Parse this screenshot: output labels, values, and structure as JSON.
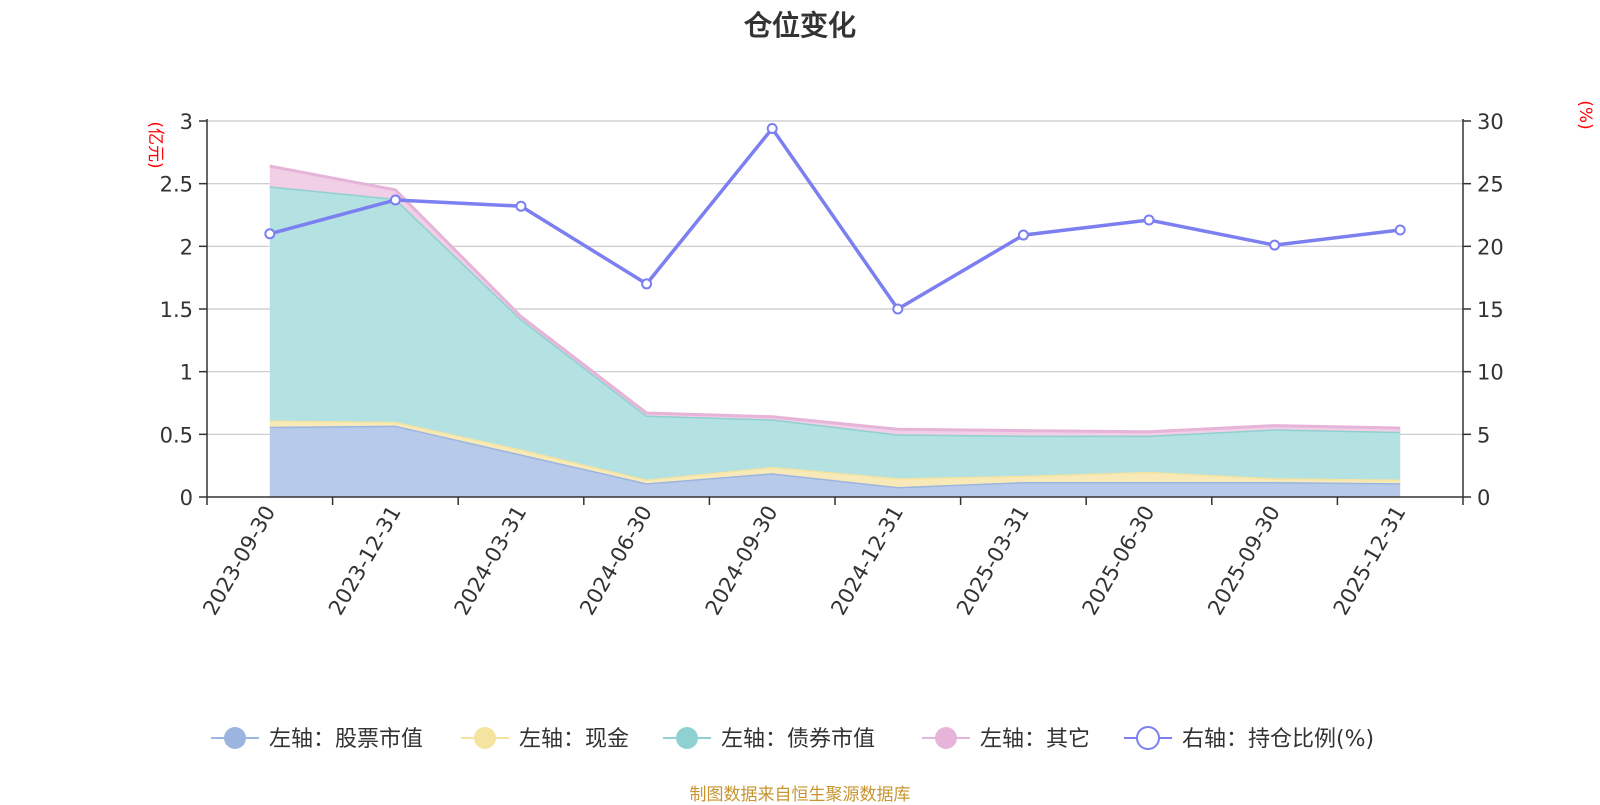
{
  "chart_data": {
    "type": "area",
    "title": "仓位变化",
    "source_note": "制图数据来自恒生聚源数据库",
    "left_axis": {
      "unit_label": "(亿元)",
      "range": [
        0,
        3
      ],
      "ticks": [
        "0",
        "0.5",
        "1",
        "1.5",
        "2",
        "2.5",
        "3"
      ]
    },
    "right_axis": {
      "unit_label": "(%)",
      "range": [
        0,
        30
      ],
      "ticks": [
        "0",
        "5",
        "10",
        "15",
        "20",
        "25",
        "30"
      ]
    },
    "categories": [
      "2023-09-30",
      "2023-12-31",
      "2024-03-31",
      "2024-06-30",
      "2024-09-30",
      "2024-12-31",
      "2025-03-31",
      "2025-06-30",
      "2025-09-30",
      "2025-12-31"
    ],
    "grid": true,
    "legend_position": "bottom",
    "stacked_series": [
      {
        "name": "左轴：股票市值",
        "color": "#9bb5e0",
        "fill": "#b7caea",
        "values": [
          0.56,
          0.57,
          0.34,
          0.11,
          0.19,
          0.08,
          0.12,
          0.12,
          0.12,
          0.11
        ]
      },
      {
        "name": "左轴：现金",
        "color": "#f5e3a0",
        "fill": "#f8eab8",
        "values": [
          0.05,
          0.03,
          0.04,
          0.03,
          0.05,
          0.07,
          0.05,
          0.08,
          0.03,
          0.03
        ]
      },
      {
        "name": "左轴：债券市值",
        "color": "#8fd0d0",
        "fill": "#b4e1e1",
        "values": [
          1.87,
          1.78,
          1.04,
          0.51,
          0.38,
          0.35,
          0.32,
          0.29,
          0.39,
          0.38
        ]
      },
      {
        "name": "左轴：其它",
        "color": "#e6b4d8",
        "fill": "#f1cfe6",
        "values": [
          0.16,
          0.07,
          0.02,
          0.02,
          0.02,
          0.04,
          0.04,
          0.03,
          0.03,
          0.03
        ]
      }
    ],
    "line_series": {
      "name": "右轴：持仓比例(%)",
      "color": "#7b7ff0",
      "values": [
        21.0,
        23.7,
        23.2,
        17.0,
        29.4,
        15.0,
        20.9,
        22.1,
        20.1,
        21.3
      ]
    }
  }
}
